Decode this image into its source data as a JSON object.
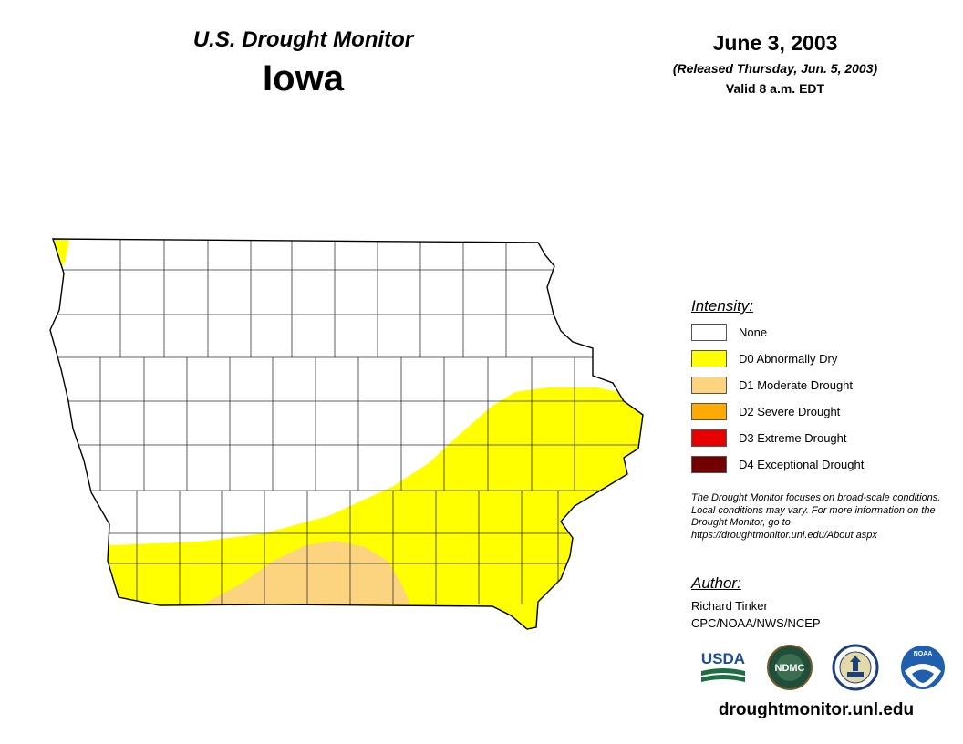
{
  "header": {
    "monitor_title": "U.S. Drought Monitor",
    "state_name": "Iowa",
    "date": "June 3, 2003",
    "released": "(Released Thursday, Jun. 5, 2003)",
    "valid": "Valid 8 a.m. EDT"
  },
  "legend": {
    "title": "Intensity:",
    "items": [
      {
        "label": "None",
        "color": "#ffffff"
      },
      {
        "label": "D0 Abnormally Dry",
        "color": "#ffff00"
      },
      {
        "label": "D1 Moderate Drought",
        "color": "#fcd37f"
      },
      {
        "label": "D2 Severe Drought",
        "color": "#ffaa00"
      },
      {
        "label": "D3 Extreme Drought",
        "color": "#e60000"
      },
      {
        "label": "D4 Exceptional Drought",
        "color": "#730000"
      }
    ]
  },
  "note": "The Drought Monitor focuses on broad-scale conditions. Local conditions may vary. For more information on the Drought Monitor, go to https://droughtmonitor.unl.edu/About.aspx",
  "author": {
    "title": "Author:",
    "name": "Richard Tinker",
    "org": "CPC/NOAA/NWS/NCEP"
  },
  "logos": [
    {
      "name": "usda-logo",
      "text": "USDA"
    },
    {
      "name": "ndmc-logo",
      "text": "NDMC"
    },
    {
      "name": "doc-logo",
      "text": ""
    },
    {
      "name": "noaa-logo",
      "text": "NOAA"
    }
  ],
  "website": "droughtmonitor.unl.edu",
  "map": {
    "state_fill": "#ffffff",
    "outline_color": "#000000",
    "county_line_color": "#333333",
    "drought_areas": [
      {
        "category": "D0",
        "color": "#ffff00",
        "location": "eastern and southern Iowa, plus far northwest corner"
      },
      {
        "category": "D1",
        "color": "#fcd37f",
        "location": "south-central Iowa along Missouri border"
      }
    ]
  }
}
